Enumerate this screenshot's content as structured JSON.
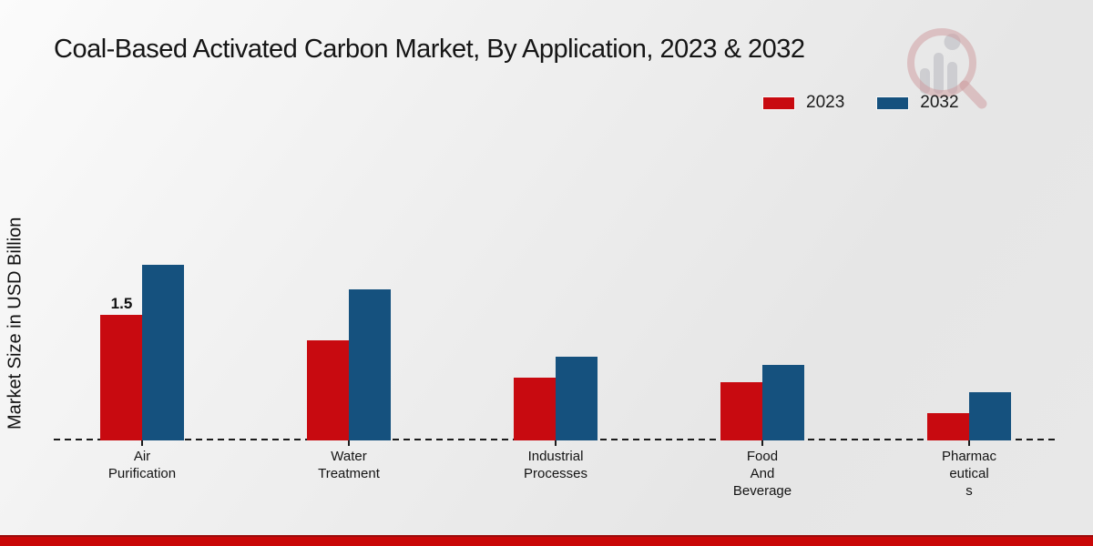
{
  "title": "Coal-Based Activated Carbon Market, By Application, 2023 & 2032",
  "watermark_icon": "market-research-magnifier-logo",
  "footer": {
    "accent_color": "#c90707"
  },
  "axis": {
    "baseline_color": "#1b1b1b"
  },
  "chart_data": {
    "type": "bar",
    "title": "Coal-Based Activated Carbon Market, By Application, 2023 & 2032",
    "xlabel": "",
    "ylabel": "Market Size in USD Billion",
    "categories": [
      "Air Purification",
      "Water Treatment",
      "Industrial Processes",
      "Food And Beverage",
      "Pharmaceuticals"
    ],
    "category_label_lines": [
      [
        "Air",
        "Purification"
      ],
      [
        "Water",
        "Treatment"
      ],
      [
        "Industrial",
        "Processes"
      ],
      [
        "Food",
        "And",
        "Beverage"
      ],
      [
        "Pharmac",
        "eutical",
        "s"
      ]
    ],
    "series": [
      {
        "name": "2023",
        "color": "#c80a10",
        "values": [
          1.5,
          1.2,
          0.75,
          0.7,
          0.33
        ]
      },
      {
        "name": "2032",
        "color": "#15517e",
        "values": [
          2.1,
          1.8,
          1.0,
          0.9,
          0.58
        ]
      }
    ],
    "annotations": [
      {
        "series": "2023",
        "category": "Air Purification",
        "text": "1.5"
      }
    ],
    "ylim": [
      0,
      2.5
    ],
    "grid": false,
    "legend_position": "top-right",
    "baseline_style": "dashed",
    "y_axis_ticks_visible": false
  }
}
